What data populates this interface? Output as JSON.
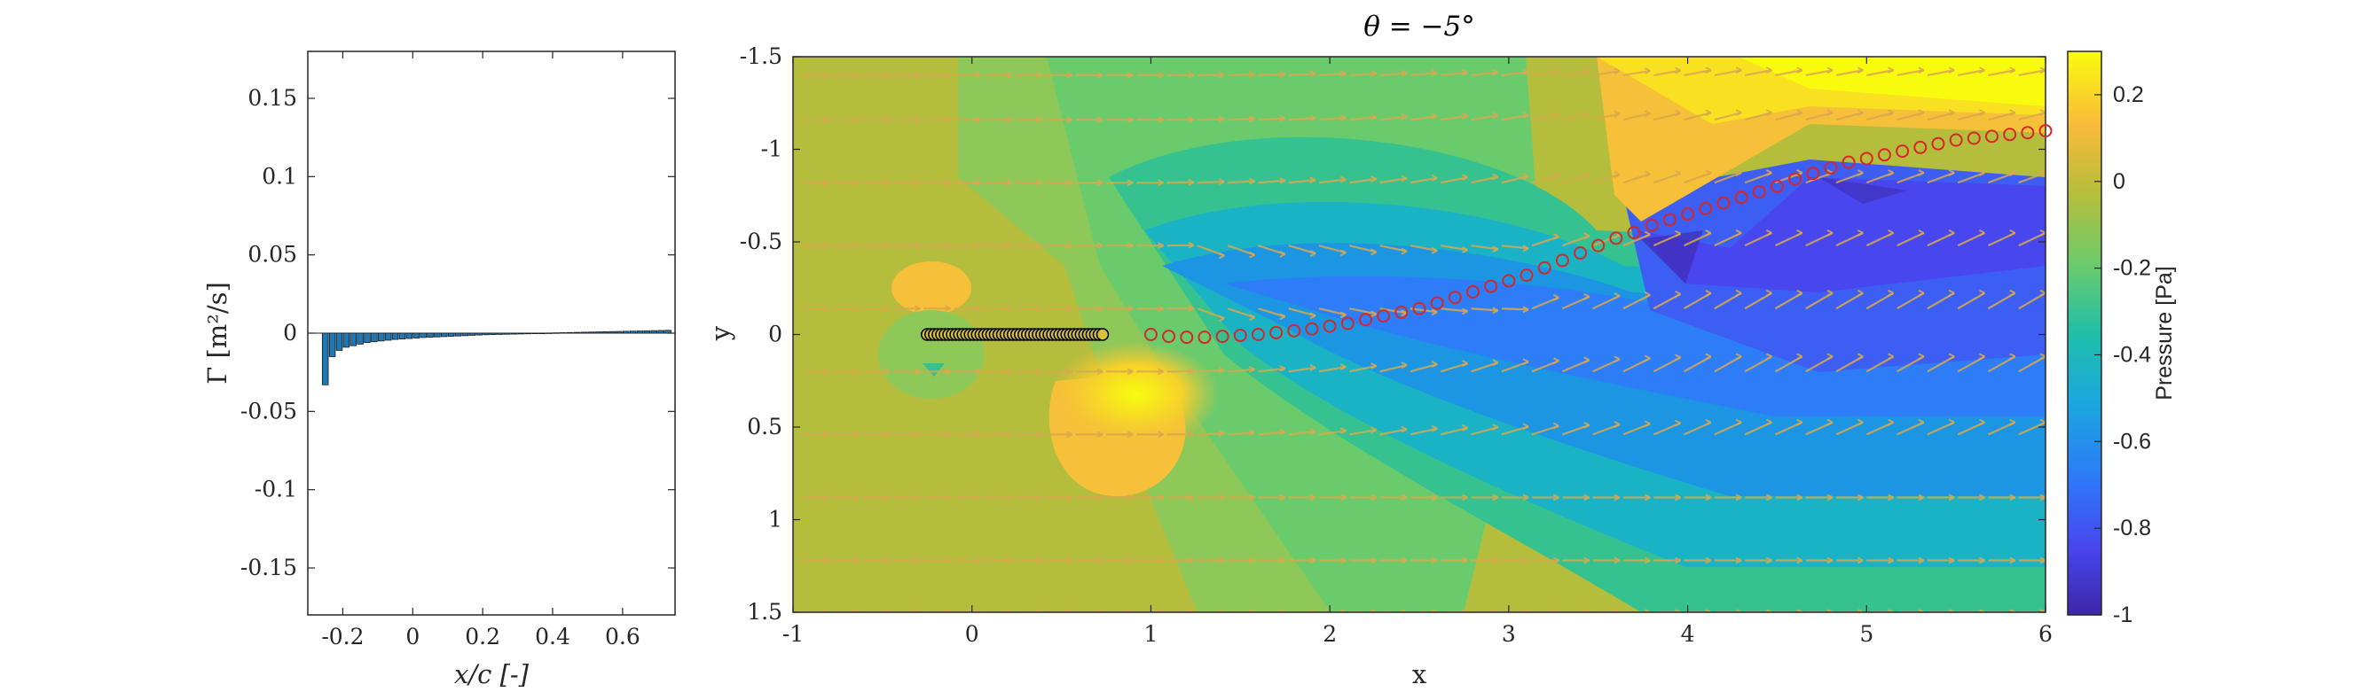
{
  "chart_data": [
    {
      "type": "bar",
      "xlabel": "x/c [-]",
      "ylabel": "Γ [m²/s]",
      "xlim": [
        -0.3,
        0.75
      ],
      "ylim": [
        -0.18,
        0.18
      ],
      "xticks": [
        "-0.2",
        "0",
        "0.2",
        "0.4",
        "0.6"
      ],
      "yticks": [
        "0.15",
        "0.1",
        "0.05",
        "0",
        "-0.05",
        "-0.1",
        "-0.15"
      ],
      "bar_color": "#1f77b4",
      "x": [
        -0.25,
        -0.23,
        -0.21,
        -0.19,
        -0.17,
        -0.15,
        -0.13,
        -0.11,
        -0.09,
        -0.07,
        -0.05,
        -0.03,
        -0.01,
        0.01,
        0.03,
        0.05,
        0.07,
        0.09,
        0.11,
        0.13,
        0.15,
        0.17,
        0.19,
        0.21,
        0.23,
        0.25,
        0.27,
        0.29,
        0.31,
        0.33,
        0.35,
        0.37,
        0.39,
        0.41,
        0.43,
        0.45,
        0.47,
        0.49,
        0.51,
        0.53,
        0.55,
        0.57,
        0.59,
        0.61,
        0.63,
        0.65,
        0.67,
        0.69,
        0.71,
        0.73
      ],
      "values": [
        -0.033,
        -0.015,
        -0.011,
        -0.009,
        -0.008,
        -0.007,
        -0.006,
        -0.0055,
        -0.005,
        -0.0045,
        -0.004,
        -0.0037,
        -0.0034,
        -0.0031,
        -0.0028,
        -0.0026,
        -0.0024,
        -0.0022,
        -0.002,
        -0.0018,
        -0.0016,
        -0.0014,
        -0.0012,
        -0.001,
        -0.0009,
        -0.0008,
        -0.0007,
        -0.0006,
        -0.0005,
        -0.0004,
        -0.0003,
        -0.0002,
        0.0001,
        0.0002,
        0.0003,
        0.0004,
        0.0005,
        0.0006,
        0.0007,
        0.0008,
        0.0009,
        0.001,
        0.0011,
        0.0012,
        0.0013,
        0.0014,
        0.0015,
        0.0016,
        0.0017,
        0.0018
      ]
    },
    {
      "type": "heatmap",
      "title": "θ = −5°",
      "xlabel": "x",
      "ylabel": "y",
      "xlim": [
        -1,
        6
      ],
      "ylim": [
        -1.5,
        1.5
      ],
      "y_reversed": true,
      "xticks": [
        "-1",
        "0",
        "1",
        "2",
        "3",
        "4",
        "5",
        "6"
      ],
      "yticks": [
        "-1.5",
        "-1",
        "-0.5",
        "0",
        "0.5",
        "1",
        "1.5"
      ],
      "colorbar": {
        "label": "Pressure [Pa]",
        "range": [
          -1,
          0.3
        ],
        "ticks": [
          "0.2",
          "0",
          "-0.2",
          "-0.4",
          "-0.6",
          "-0.8",
          "-1"
        ],
        "colormap": "parula"
      },
      "plate_markers": {
        "edge_color": "#000000",
        "y": 0,
        "x": [
          -0.25,
          -0.23,
          -0.21,
          -0.19,
          -0.17,
          -0.15,
          -0.13,
          -0.11,
          -0.09,
          -0.07,
          -0.05,
          -0.03,
          -0.01,
          0.01,
          0.03,
          0.05,
          0.07,
          0.09,
          0.11,
          0.13,
          0.15,
          0.17,
          0.19,
          0.21,
          0.23,
          0.25,
          0.27,
          0.29,
          0.31,
          0.33,
          0.35,
          0.37,
          0.39,
          0.41,
          0.43,
          0.45,
          0.47,
          0.49,
          0.51,
          0.53,
          0.55,
          0.57,
          0.59,
          0.61,
          0.63,
          0.65,
          0.67,
          0.69,
          0.71,
          0.73
        ]
      },
      "wake_markers": {
        "edge_color": "#d62728",
        "x": [
          1.0,
          1.1,
          1.2,
          1.3,
          1.4,
          1.5,
          1.6,
          1.7,
          1.8,
          1.9,
          2.0,
          2.1,
          2.2,
          2.3,
          2.4,
          2.5,
          2.6,
          2.7,
          2.8,
          2.9,
          3.0,
          3.1,
          3.2,
          3.3,
          3.4,
          3.5,
          3.6,
          3.7,
          3.8,
          3.9,
          4.0,
          4.1,
          4.2,
          4.3,
          4.4,
          4.5,
          4.6,
          4.7,
          4.8,
          4.9,
          5.0,
          5.1,
          5.2,
          5.3,
          5.4,
          5.5,
          5.6,
          5.7,
          5.8,
          5.9,
          6.0
        ],
        "y": [
          0,
          0.01,
          0.015,
          0.015,
          0.01,
          0.005,
          0,
          -0.01,
          -0.02,
          -0.03,
          -0.045,
          -0.06,
          -0.08,
          -0.1,
          -0.12,
          -0.14,
          -0.17,
          -0.2,
          -0.23,
          -0.26,
          -0.29,
          -0.32,
          -0.36,
          -0.4,
          -0.44,
          -0.48,
          -0.52,
          -0.55,
          -0.59,
          -0.62,
          -0.65,
          -0.68,
          -0.71,
          -0.74,
          -0.77,
          -0.8,
          -0.84,
          -0.87,
          -0.9,
          -0.93,
          -0.95,
          -0.97,
          -0.99,
          -1.01,
          -1.03,
          -1.05,
          -1.06,
          -1.07,
          -1.08,
          -1.09,
          -1.1
        ]
      },
      "quiver_color": "#d9a84e"
    }
  ]
}
